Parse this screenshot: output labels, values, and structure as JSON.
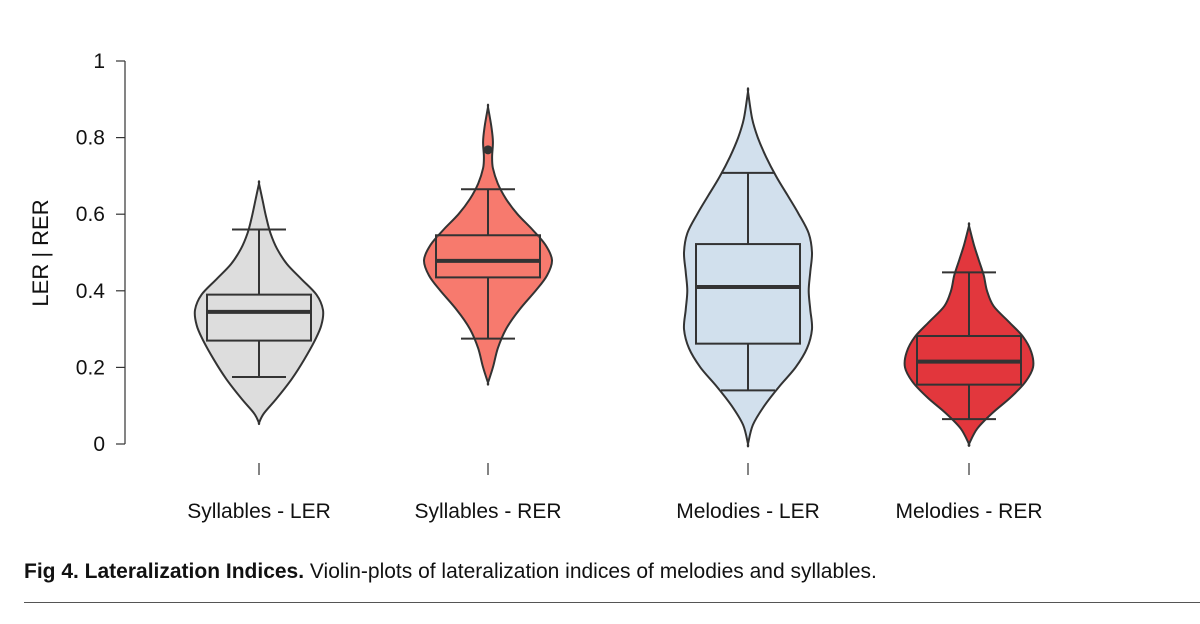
{
  "chart_data": {
    "type": "violin",
    "ylabel": "LER | RER",
    "ylim": [
      0,
      1
    ],
    "yticks": [
      "0",
      "0.2",
      "0.4",
      "0.6",
      "0.8",
      "1"
    ],
    "categories": [
      "Syllables - LER",
      "Syllables - RER",
      "Melodies - LER",
      "Melodies - RER"
    ],
    "colors": [
      "#dddddd",
      "#f77a6e",
      "#d2e0ed",
      "#e2373d"
    ],
    "series": [
      {
        "min": 0.055,
        "max": 0.68,
        "whisker_low": 0.175,
        "q1": 0.27,
        "median": 0.345,
        "q3": 0.39,
        "whisker_high": 0.56,
        "outliers": [],
        "density": [
          [
            0.055,
            0
          ],
          [
            0.08,
            6
          ],
          [
            0.12,
            22
          ],
          [
            0.17,
            40
          ],
          [
            0.22,
            55
          ],
          [
            0.27,
            68
          ],
          [
            0.31,
            76
          ],
          [
            0.35,
            78
          ],
          [
            0.39,
            70
          ],
          [
            0.43,
            52
          ],
          [
            0.47,
            34
          ],
          [
            0.51,
            22
          ],
          [
            0.55,
            14
          ],
          [
            0.59,
            9
          ],
          [
            0.63,
            5
          ],
          [
            0.68,
            0
          ]
        ]
      },
      {
        "min": 0.16,
        "max": 0.88,
        "whisker_low": 0.275,
        "q1": 0.435,
        "median": 0.478,
        "q3": 0.545,
        "whisker_high": 0.665,
        "outliers": [
          0.768
        ],
        "density": [
          [
            0.16,
            0
          ],
          [
            0.2,
            6
          ],
          [
            0.25,
            12
          ],
          [
            0.3,
            22
          ],
          [
            0.35,
            38
          ],
          [
            0.4,
            58
          ],
          [
            0.44,
            72
          ],
          [
            0.48,
            78
          ],
          [
            0.52,
            70
          ],
          [
            0.56,
            54
          ],
          [
            0.6,
            36
          ],
          [
            0.64,
            22
          ],
          [
            0.68,
            12
          ],
          [
            0.72,
            6
          ],
          [
            0.75,
            5
          ],
          [
            0.79,
            6
          ],
          [
            0.83,
            4
          ],
          [
            0.88,
            0
          ]
        ]
      },
      {
        "min": 0.0,
        "max": 0.92,
        "whisker_low": 0.14,
        "q1": 0.262,
        "median": 0.41,
        "q3": 0.522,
        "whisker_high": 0.708,
        "outliers": [],
        "density": [
          [
            0.0,
            0
          ],
          [
            0.05,
            6
          ],
          [
            0.1,
            20
          ],
          [
            0.15,
            38
          ],
          [
            0.2,
            58
          ],
          [
            0.25,
            72
          ],
          [
            0.3,
            78
          ],
          [
            0.35,
            76
          ],
          [
            0.4,
            74
          ],
          [
            0.45,
            76
          ],
          [
            0.5,
            78
          ],
          [
            0.55,
            74
          ],
          [
            0.6,
            62
          ],
          [
            0.65,
            48
          ],
          [
            0.7,
            34
          ],
          [
            0.75,
            22
          ],
          [
            0.8,
            12
          ],
          [
            0.85,
            5
          ],
          [
            0.92,
            0
          ]
        ]
      },
      {
        "min": 0.0,
        "max": 0.57,
        "whisker_low": 0.065,
        "q1": 0.155,
        "median": 0.215,
        "q3": 0.282,
        "whisker_high": 0.448,
        "outliers": [],
        "density": [
          [
            0.0,
            0
          ],
          [
            0.04,
            10
          ],
          [
            0.08,
            28
          ],
          [
            0.12,
            50
          ],
          [
            0.16,
            68
          ],
          [
            0.2,
            78
          ],
          [
            0.24,
            76
          ],
          [
            0.28,
            66
          ],
          [
            0.32,
            48
          ],
          [
            0.36,
            30
          ],
          [
            0.4,
            22
          ],
          [
            0.44,
            18
          ],
          [
            0.48,
            12
          ],
          [
            0.52,
            6
          ],
          [
            0.57,
            0
          ]
        ]
      }
    ]
  },
  "caption": {
    "label": "Fig 4.  Lateralization Indices.",
    "text": " Violin-plots of lateralization indices of melodies and syllables."
  }
}
